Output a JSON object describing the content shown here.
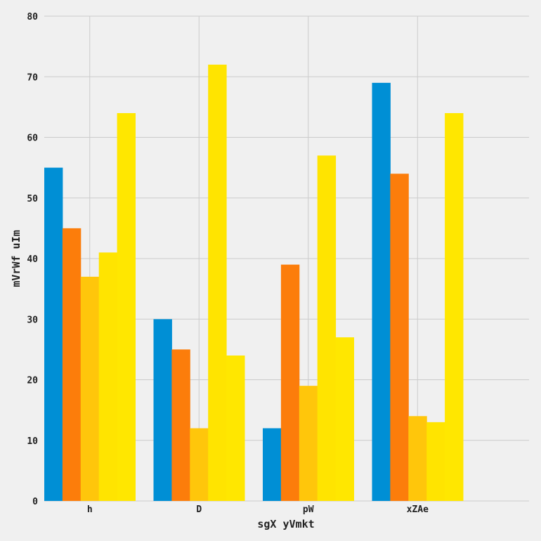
{
  "chart_data": {
    "type": "bar",
    "title": "",
    "xlabel": "sgX yVmkt",
    "ylabel": "mVrWf uIm",
    "categories": [
      "h",
      "D",
      "pW",
      "xZAe"
    ],
    "series": [
      {
        "values": [
          55,
          30,
          12,
          69
        ],
        "color": "#008fd5"
      },
      {
        "values": [
          45,
          25,
          39,
          54
        ],
        "color": "#fc7d0b"
      },
      {
        "values": [
          37,
          12,
          19,
          14
        ],
        "color": "#ffc60b"
      },
      {
        "values": [
          41,
          72,
          57,
          13
        ],
        "color": "#ffe400"
      },
      {
        "values": [
          64,
          24,
          27,
          64
        ],
        "color": "#ffe700"
      }
    ],
    "ylim": [
      0,
      80
    ],
    "yticks": [
      0,
      10,
      20,
      30,
      40,
      50,
      60,
      70,
      80
    ],
    "grid": true,
    "background": "#f0f0f0",
    "grid_color": "#cbcbcb"
  }
}
